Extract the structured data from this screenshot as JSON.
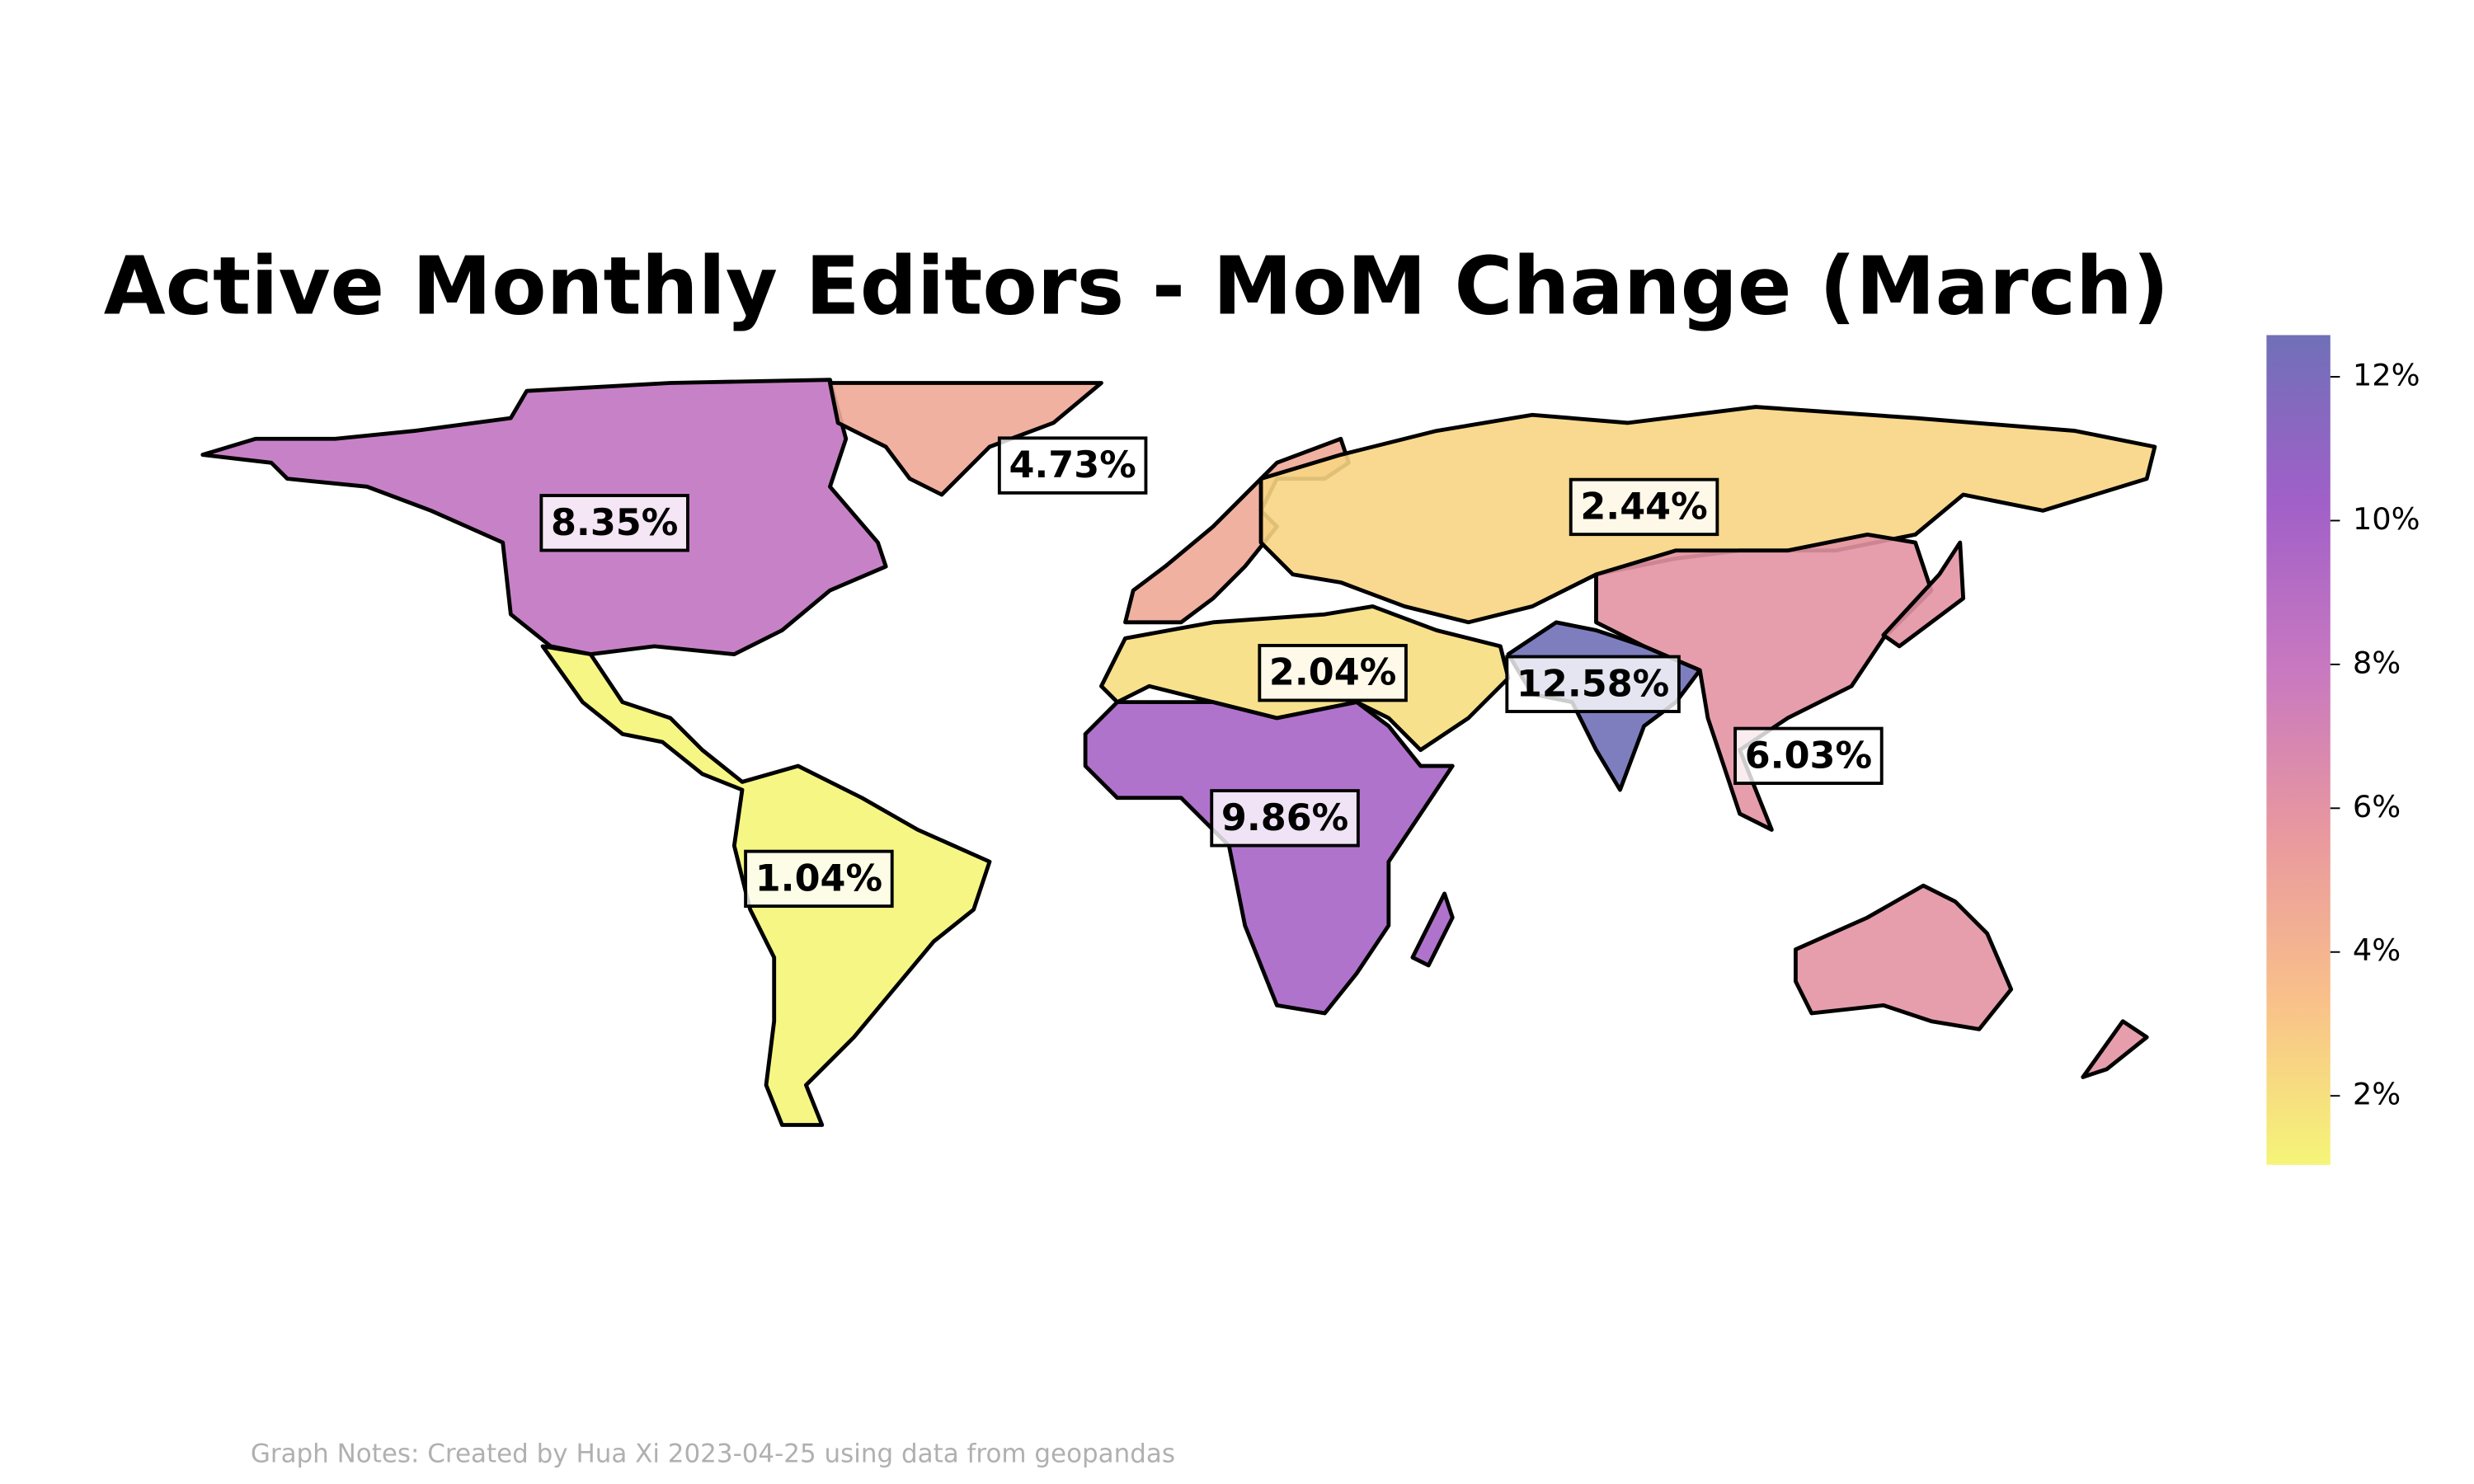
{
  "chart_data": {
    "type": "choropleth",
    "title": "Active Monthly Editors - MoM Change (March)",
    "note": "Graph Notes: Created by Hua Xi 2023-04-25 using data from geopandas",
    "values": [
      8.35,
      4.73,
      2.44,
      2.04,
      12.58,
      6.03,
      9.86,
      1.04
    ],
    "value_labels": [
      "8.35%",
      "4.73%",
      "2.44%",
      "2.04%",
      "12.58%",
      "6.03%",
      "9.86%",
      "1.04%"
    ],
    "ylim": [
      1.04,
      12.58
    ],
    "yticks": [
      {
        "value": 2,
        "label": "2%"
      },
      {
        "value": 4,
        "label": "4%"
      },
      {
        "value": 6,
        "label": "6%"
      },
      {
        "value": 8,
        "label": "8%"
      },
      {
        "value": 10,
        "label": "10%"
      },
      {
        "value": 12,
        "label": "12%"
      }
    ],
    "colorscale": [
      "#f5f578",
      "#f9c08a",
      "#e8989f",
      "#c878c0",
      "#a060c8",
      "#7070b8"
    ]
  }
}
